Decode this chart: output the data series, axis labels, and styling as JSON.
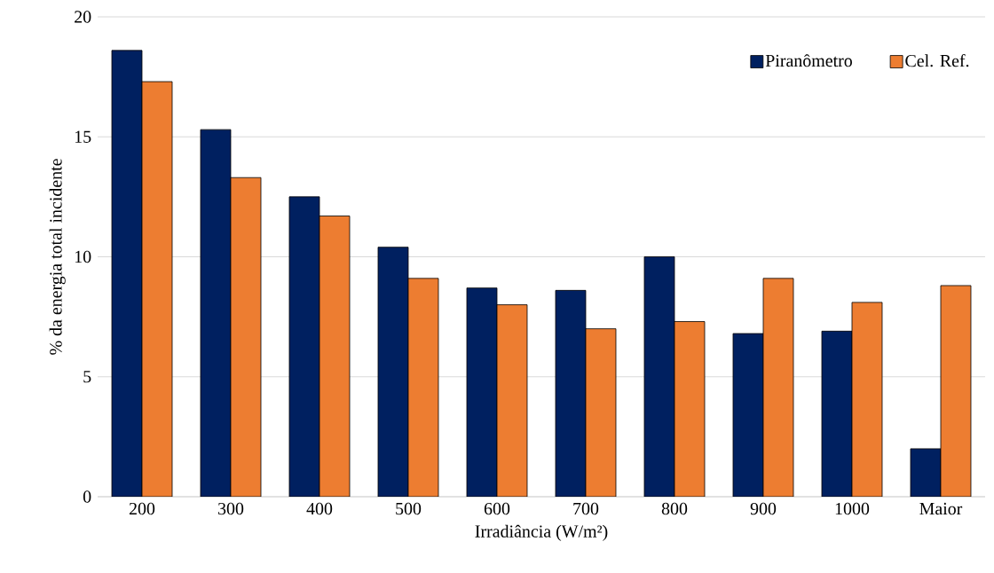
{
  "chart_data": {
    "type": "bar",
    "xlabel": "Irradiância (W/m²)",
    "ylabel": "% da energia total incidente",
    "categories": [
      "200",
      "300",
      "400",
      "500",
      "600",
      "700",
      "800",
      "900",
      "1000",
      "Maior"
    ],
    "series": [
      {
        "name": "Piranômetro",
        "color": "#002060",
        "values": [
          18.6,
          15.3,
          12.5,
          10.4,
          8.7,
          8.6,
          10.0,
          6.8,
          6.9,
          2.0
        ]
      },
      {
        "name": "Cel. Ref.",
        "color": "#ed7d31",
        "values": [
          17.3,
          13.3,
          11.7,
          9.1,
          8.0,
          7.0,
          7.3,
          9.1,
          8.1,
          8.8
        ]
      }
    ],
    "ylim": [
      0,
      20
    ],
    "yticks": [
      0,
      5,
      10,
      15,
      20
    ],
    "grid": "y",
    "legend": "top right"
  }
}
